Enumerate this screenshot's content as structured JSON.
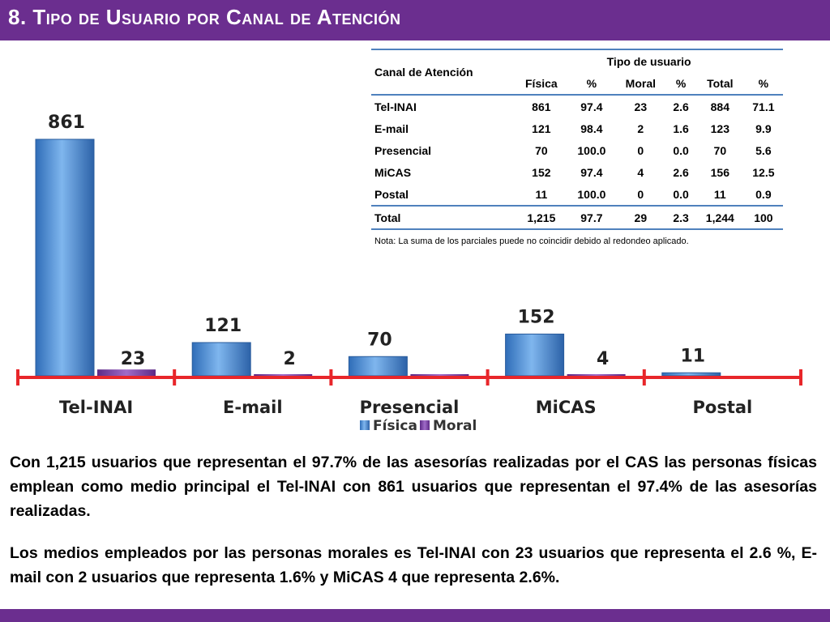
{
  "header": {
    "title": "8. Tipo de Usuario por Canal de Atención"
  },
  "colors": {
    "bar_bg": "#6b2e8f",
    "fisica": "#4f8fd6",
    "moral": "#7a3fa0",
    "axis": "#e8262a",
    "table_rule": "#4f81bd"
  },
  "chart_data": {
    "type": "bar",
    "categories": [
      "Tel-INAI",
      "E-mail",
      "Presencial",
      "MiCAS",
      "Postal"
    ],
    "series": [
      {
        "name": "Física",
        "values": [
          861,
          121,
          70,
          152,
          11
        ]
      },
      {
        "name": "Moral",
        "values": [
          23,
          2,
          0,
          4,
          null
        ]
      }
    ],
    "data_labels": {
      "Física": [
        "861",
        "121",
        "70",
        "152",
        "11"
      ],
      "Moral": [
        "23",
        "2",
        "",
        "4",
        ""
      ]
    },
    "legend": {
      "placement": "bottom",
      "items": [
        "Física",
        "Moral"
      ]
    },
    "ylim": [
      0,
      900
    ]
  },
  "table": {
    "corner_header": "Canal de Atención",
    "group_header": "Tipo de usuario",
    "subheaders": [
      "Física",
      "%",
      "Moral",
      "%",
      "Total",
      "%"
    ],
    "rows": [
      [
        "Tel-INAI",
        "861",
        "97.4",
        "23",
        "2.6",
        "884",
        "71.1"
      ],
      [
        "E-mail",
        "121",
        "98.4",
        "2",
        "1.6",
        "123",
        "9.9"
      ],
      [
        "Presencial",
        "70",
        "100.0",
        "0",
        "0.0",
        "70",
        "5.6"
      ],
      [
        "MiCAS",
        "152",
        "97.4",
        "4",
        "2.6",
        "156",
        "12.5"
      ],
      [
        "Postal",
        "11",
        "100.0",
        "0",
        "0.0",
        "11",
        "0.9"
      ]
    ],
    "total_row": [
      "Total",
      "1,215",
      "97.7",
      "29",
      "2.3",
      "1,244",
      "100"
    ],
    "note": "Nota: La suma de los parciales puede no coincidir debido al redondeo aplicado."
  },
  "body": {
    "paragraph_1": "Con 1,215 usuarios que representan el 97.7% de las asesorías realizadas por el CAS las personas físicas emplean como medio principal el Tel-INAI con 861 usuarios que representan el 97.4% de las asesorías realizadas.",
    "paragraph_2": "Los medios empleados por las personas morales es Tel-INAI con 23 usuarios que representa el 2.6 %,  E-mail con 2 usuarios que representa 1.6% y MiCAS 4 que representa 2.6%."
  }
}
